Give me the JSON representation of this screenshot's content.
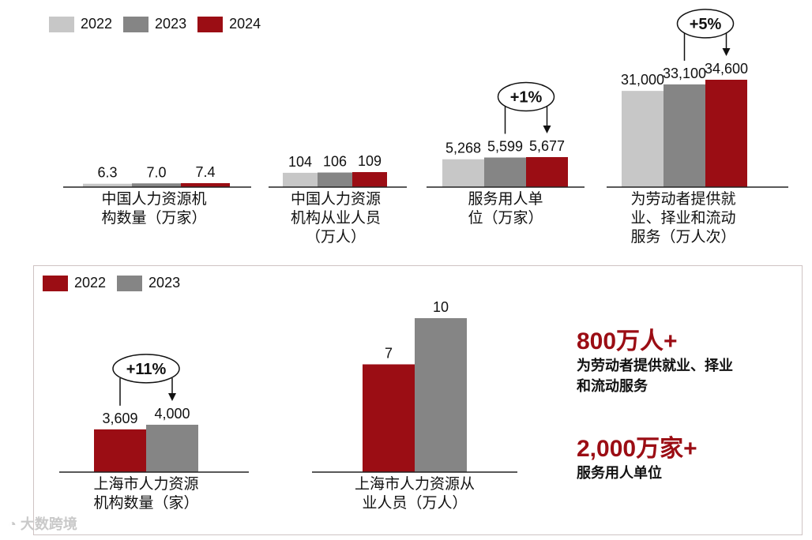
{
  "colors": {
    "y2022_light": "#c7c7c7",
    "y2023": "#858585",
    "y2024": "#9b0d14",
    "sh_2022": "#9b0d14",
    "sh_2023": "#858585",
    "accent": "#9b0d14"
  },
  "top_legend": [
    "2022",
    "2023",
    "2024"
  ],
  "bottom_legend": [
    "2022",
    "2023"
  ],
  "chart_data": [
    {
      "type": "bar",
      "categories": [
        "2022",
        "2023",
        "2024"
      ],
      "values": [
        6.3,
        7.0,
        7.4
      ],
      "value_labels": [
        "6.3",
        "7.0",
        "7.4"
      ],
      "caption": [
        "中国人力资源机",
        "构数量（万家）"
      ]
    },
    {
      "type": "bar",
      "categories": [
        "2022",
        "2023",
        "2024"
      ],
      "values": [
        104,
        106,
        109
      ],
      "value_labels": [
        "104",
        "106",
        "109"
      ],
      "caption": [
        "中国人力资源",
        "机构从业人员",
        "（万人）"
      ]
    },
    {
      "type": "bar",
      "categories": [
        "2022",
        "2023",
        "2024"
      ],
      "values": [
        5268,
        5599,
        5677
      ],
      "value_labels": [
        "5,268",
        "5,599",
        "5,677"
      ],
      "annotation": "+1%",
      "caption": [
        "服务用人单",
        "位（万家）"
      ]
    },
    {
      "type": "bar",
      "categories": [
        "2022",
        "2023",
        "2024"
      ],
      "values": [
        31000,
        33100,
        34600
      ],
      "value_labels": [
        "31,000",
        "33,100",
        "34,600"
      ],
      "annotation": "+5%",
      "caption": [
        "为劳动者提供就",
        "业、择业和流动",
        "服务（万人次）"
      ]
    },
    {
      "type": "bar",
      "categories": [
        "2022",
        "2023"
      ],
      "values": [
        3609,
        4000
      ],
      "value_labels": [
        "3,609",
        "4,000"
      ],
      "annotation": "+11%",
      "caption": [
        "上海市人力资源",
        "机构数量（家）"
      ]
    },
    {
      "type": "bar",
      "categories": [
        "2022",
        "2023"
      ],
      "values": [
        7,
        10
      ],
      "value_labels": [
        "7",
        "10"
      ],
      "caption": [
        "上海市人力资源从",
        "业人员（万人）"
      ]
    }
  ],
  "highlights": [
    {
      "big": "800万人+",
      "desc": [
        "为劳动者提供就业、择业",
        "和流动服务"
      ]
    },
    {
      "big": "2,000万家+",
      "desc": [
        "服务用人单位"
      ]
    }
  ],
  "watermark_text": "大数跨境"
}
